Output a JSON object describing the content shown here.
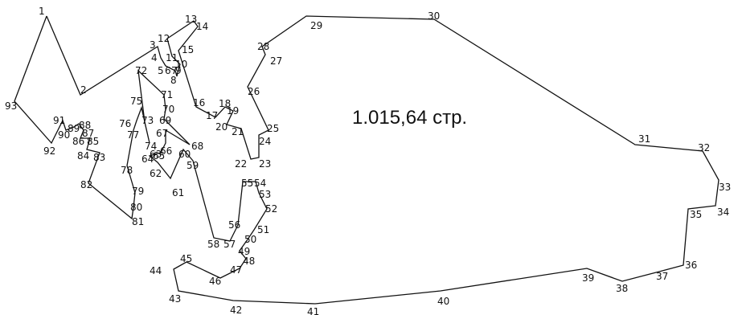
{
  "diagram": {
    "tour_length_text": "1.015,64 стр.",
    "ink_color": "#111111",
    "background_color": "#ffffff",
    "node_sequence": [
      1,
      2,
      3,
      4,
      5,
      6,
      7,
      8,
      9,
      10,
      11,
      12,
      13,
      14,
      15,
      16,
      17,
      18,
      19,
      20,
      21,
      22,
      23,
      24,
      25,
      26,
      27,
      28,
      29,
      30,
      31,
      32,
      33,
      34,
      35,
      36,
      37,
      38,
      39,
      40,
      41,
      42,
      43,
      44,
      45,
      46,
      47,
      48,
      49,
      50,
      51,
      52,
      53,
      54,
      55,
      56,
      57,
      58,
      59,
      60,
      61,
      62,
      63,
      64,
      65,
      66,
      67,
      68,
      69,
      70,
      71,
      72,
      73,
      74,
      75,
      76,
      77,
      78,
      79,
      80,
      81,
      82,
      83,
      84,
      85,
      86,
      87,
      88,
      89,
      90,
      91,
      92,
      93
    ],
    "node_labels": [
      "1",
      "2",
      "3",
      "4",
      "5",
      "6",
      "7",
      "8",
      "9",
      "10",
      "11",
      "12",
      "13",
      "14",
      "15",
      "16",
      "17",
      "18",
      "19",
      "20",
      "21",
      "22",
      "23",
      "24",
      "25",
      "26",
      "27",
      "28",
      "29",
      "30",
      "31",
      "32",
      "33",
      "34",
      "35",
      "36",
      "37",
      "38",
      "39",
      "40",
      "41",
      "42",
      "43",
      "44",
      "45",
      "46",
      "47",
      "48",
      "49",
      "50",
      "51",
      "52",
      "53",
      "54",
      "55",
      "56",
      "57",
      "58",
      "59",
      "60",
      "61",
      "62",
      "63",
      "64",
      "65",
      "66",
      "67",
      "68",
      "69",
      "70",
      "71",
      "72",
      "73",
      "74",
      "75",
      "76",
      "77",
      "78",
      "79",
      "80",
      "81",
      "82",
      "83",
      "84",
      "85",
      "86",
      "87",
      "88",
      "89",
      "90",
      "91",
      "92",
      "93"
    ]
  }
}
